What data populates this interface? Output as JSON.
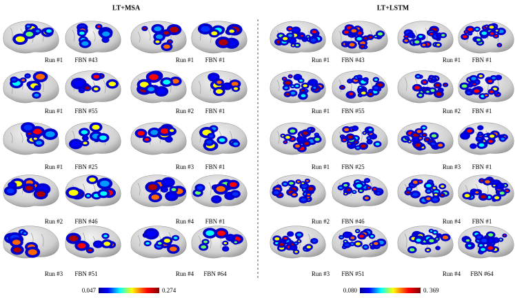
{
  "panels": [
    {
      "title": "LT+MSA",
      "rows": [
        {
          "left": {
            "run": "Run #1",
            "fbn": "FBN #43"
          },
          "right": {
            "run": "Run #1",
            "fbn": "FBN #1"
          }
        },
        {
          "left": {
            "run": "Run #1",
            "fbn": "FBN #55"
          },
          "right": {
            "run": "Run #2",
            "fbn": "FBN #1"
          }
        },
        {
          "left": {
            "run": "Run #1",
            "fbn": "FBN #25"
          },
          "right": {
            "run": "Run #3",
            "fbn": "FBN #1"
          }
        },
        {
          "left": {
            "run": "Run #2",
            "fbn": "FBN #46"
          },
          "right": {
            "run": "Run #4",
            "fbn": "FBN #1"
          }
        },
        {
          "left": {
            "run": "Run #3",
            "fbn": "FBN #51"
          },
          "right": {
            "run": "Run #4",
            "fbn": "FBN #64"
          }
        }
      ],
      "colorbar": {
        "min": "0.047",
        "max": "0.274"
      }
    },
    {
      "title": "LT+LSTM",
      "rows": [
        {
          "left": {
            "run": "Run #1",
            "fbn": "FBN #43"
          },
          "right": {
            "run": "Run #1",
            "fbn": "FBN #1"
          }
        },
        {
          "left": {
            "run": "Run #1",
            "fbn": "FBN #55"
          },
          "right": {
            "run": "Run #2",
            "fbn": "FBN #1"
          }
        },
        {
          "left": {
            "run": "Run #1",
            "fbn": "FBN #25"
          },
          "right": {
            "run": "Run #3",
            "fbn": "FBN #1"
          }
        },
        {
          "left": {
            "run": "Run #2",
            "fbn": "FBN #46"
          },
          "right": {
            "run": "Run #4",
            "fbn": "FBN #1"
          }
        },
        {
          "left": {
            "run": "Run #3",
            "fbn": "FBN #51"
          },
          "right": {
            "run": "Run #4",
            "fbn": "FBN #64"
          }
        }
      ],
      "colorbar": {
        "min": "0.080",
        "max": "0. 369"
      }
    }
  ]
}
